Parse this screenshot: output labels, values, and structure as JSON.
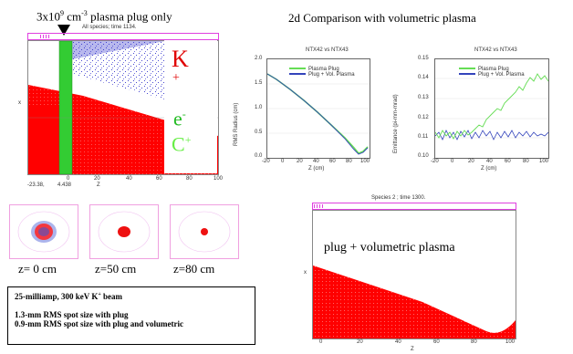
{
  "left_panel": {
    "heading_base": "3x10",
    "heading_exp1": "9",
    "heading_mid": " cm",
    "heading_exp2": "-3",
    "heading_tail": " plasma plug only",
    "subtitle": "All species; time 1134.",
    "species_k": "K",
    "species_k_sup": "+",
    "species_e": "e",
    "species_e_sup": "-",
    "species_c": "C",
    "species_c_sup": "+",
    "x_ticks": [
      "0",
      "20",
      "40",
      "60",
      "80",
      "100"
    ],
    "x_left_label": "-23.38,",
    "x_mid_label": "4.438",
    "x_axis_label": "Z",
    "y_axis_label": "x",
    "colors": {
      "ions": "#ff0000",
      "electrons": "#3333cc",
      "carbon": "#33cc33"
    }
  },
  "comparison": {
    "heading": "2d Comparison with volumetric plasma",
    "charts": [
      {
        "title": "NTX42 vs NTX43",
        "ylabel": "RMS Radius (cm)",
        "xlabel": "Z (cm)",
        "y_ticks": [
          "2.0",
          "1.5",
          "1.0",
          "0.5",
          "0.0"
        ],
        "x_ticks": [
          "-20",
          "0",
          "20",
          "40",
          "60",
          "80",
          "100"
        ],
        "legend": [
          "Plasma Plug",
          "Plug + Vol. Plasma"
        ]
      },
      {
        "title": "NTX42 vs NTX43",
        "ylabel": "Emittance (pi-mm-mrad)",
        "xlabel": "Z (cm)",
        "y_ticks": [
          "0.15",
          "0.14",
          "0.13",
          "0.12",
          "0.11",
          "0.10"
        ],
        "x_ticks": [
          "-20",
          "0",
          "20",
          "40",
          "60",
          "80",
          "100"
        ],
        "legend": [
          "Plasma Plug",
          "Plug + Vol. Plasma"
        ]
      }
    ],
    "colors": {
      "plug": "#66dd55",
      "vol": "#3344bb"
    }
  },
  "spots": {
    "labels": [
      "z= 0 cm",
      "z=50 cm",
      "z=80 cm"
    ]
  },
  "info_box": {
    "line1_pre": "25-milliamp, 300 keV K",
    "line1_sup": "+",
    "line1_post": " beam",
    "line2": "1.3-mm RMS spot size with plug",
    "line3": "0.9-mm RMS spot size with plug and volumetric"
  },
  "bottom_panel": {
    "subtitle": "Species 2 ; time 1300.",
    "label": "plug + volumetric plasma",
    "x_ticks": [
      "0",
      "20",
      "40",
      "60",
      "80",
      "100"
    ],
    "x_axis_label": "Z",
    "y_axis_label": "x"
  }
}
